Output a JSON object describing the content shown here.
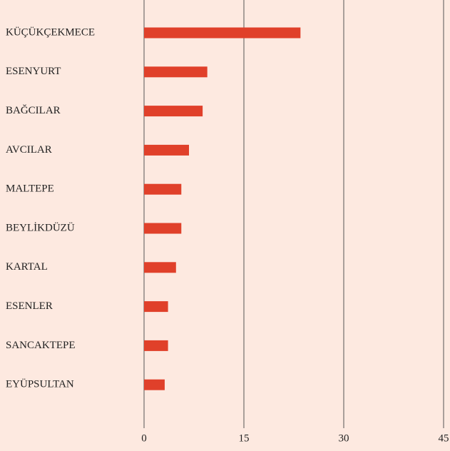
{
  "chart_data": {
    "type": "hbar",
    "categories": [
      "KÜÇÜKÇEKMECE",
      "ESENYURT",
      "BAĞCILAR",
      "AVCILAR",
      "MALTEPE",
      "BEYLİKDÜZÜ",
      "KARTAL",
      "ESENLER",
      "SANCAKTEPE",
      "EYÜPSULTAN"
    ],
    "values": [
      23.5,
      9.5,
      8.8,
      6.75,
      5.6,
      5.6,
      4.8,
      3.6,
      3.6,
      3.1
    ],
    "color": "#e0402a",
    "xlim": [
      0,
      45
    ],
    "xticks": [
      0,
      15,
      30,
      45
    ],
    "grid": true
  }
}
